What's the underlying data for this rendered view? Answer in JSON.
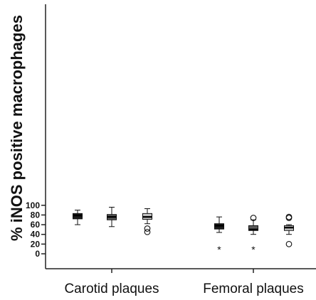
{
  "chart_data": {
    "type": "box",
    "ylabel": "% iNOS positive macrophages",
    "xlabel": "",
    "ylim": [
      0,
      100
    ],
    "yticks": [
      0,
      20,
      40,
      60,
      80,
      100
    ],
    "yticklabels": [
      "0",
      "20",
      "40",
      "60",
      "80",
      "100"
    ],
    "categories": [
      "Carotid plaques",
      "Femoral plaques"
    ],
    "series": [
      {
        "color": "#1c1c1c",
        "boxes": [
          {
            "category": "Carotid plaques",
            "min": 60,
            "q1": 72,
            "median": 79,
            "q3": 83,
            "max": 90,
            "outliers": [],
            "extremes": []
          },
          {
            "category": "Femoral plaques",
            "min": 44,
            "q1": 51,
            "median": 58,
            "q3": 62,
            "max": 76,
            "outliers": [],
            "extremes": [
              10
            ]
          }
        ]
      },
      {
        "color": "#5a5a5a",
        "boxes": [
          {
            "category": "Carotid plaques",
            "min": 56,
            "q1": 70,
            "median": 76,
            "q3": 81,
            "max": 96,
            "outliers": [],
            "extremes": []
          },
          {
            "category": "Femoral plaques",
            "min": 40,
            "q1": 48,
            "median": 50,
            "q3": 58,
            "max": 70,
            "outliers": [
              74
            ],
            "extremes": [
              10
            ]
          }
        ]
      },
      {
        "color": "#c8c8c8",
        "boxes": [
          {
            "category": "Carotid plaques",
            "min": 62,
            "q1": 71,
            "median": 76,
            "q3": 83,
            "max": 93,
            "outliers": [
              52,
              45
            ],
            "extremes": []
          },
          {
            "category": "Femoral plaques",
            "min": 40,
            "q1": 48,
            "median": 54,
            "q3": 58,
            "max": 60,
            "outliers": [
              76,
              74,
              20
            ],
            "extremes": []
          }
        ]
      }
    ],
    "grid": false,
    "legend": "none"
  }
}
